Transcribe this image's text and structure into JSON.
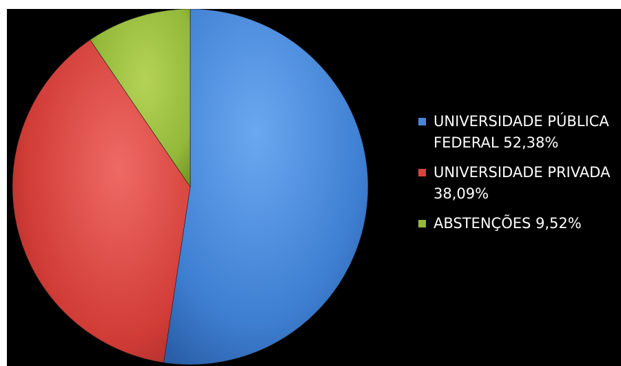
{
  "chart_data": {
    "type": "pie",
    "title": "",
    "series": [
      {
        "name": "UNIVERSIDADE PÚBLICA FEDERAL 52,38%",
        "value": 52.38,
        "color": "#4a86d6"
      },
      {
        "name": "UNIVERSIDADE PRIVADA 38,09%",
        "value": 38.09,
        "color": "#d9433f"
      },
      {
        "name": "ABSTENÇÕES 9,52%",
        "value": 9.52,
        "color": "#93b83a"
      }
    ],
    "legend_placement": "right",
    "background": "#000000"
  }
}
